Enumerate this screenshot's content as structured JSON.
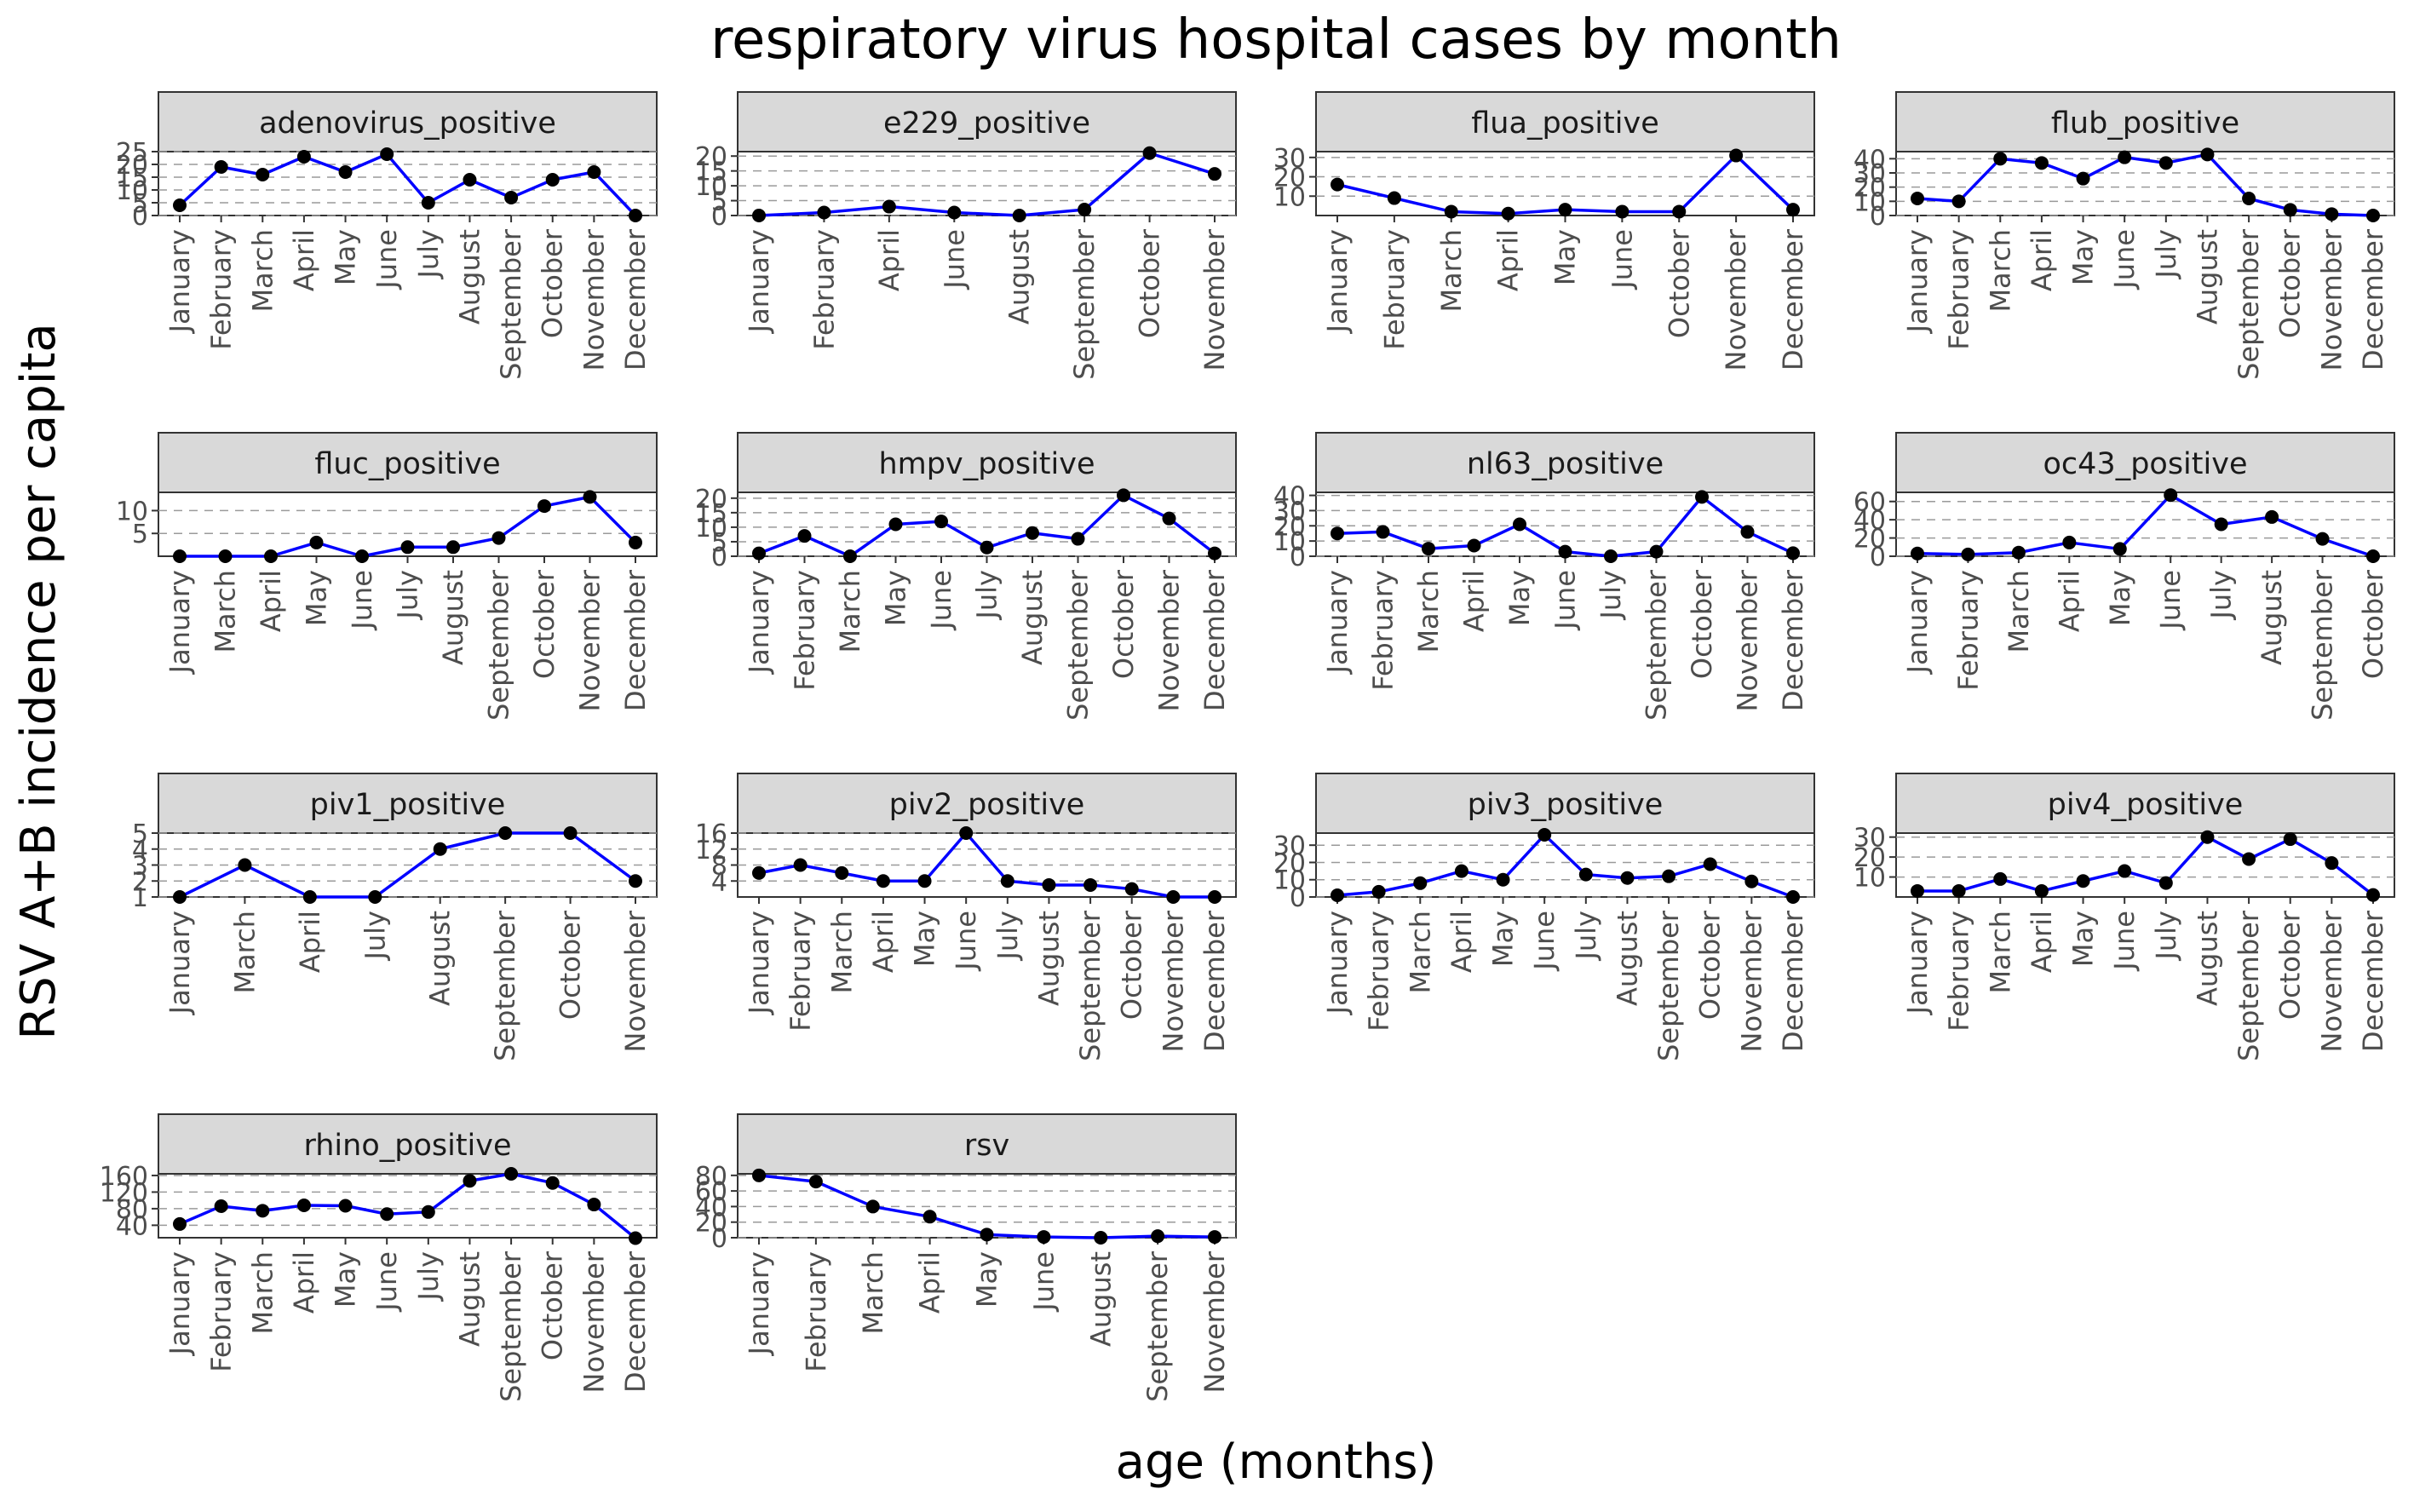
{
  "title": "respiratory virus hospital cases by month",
  "xlabel": "age (months)",
  "ylabel": "RSV A+B incidence per capita",
  "colors": {
    "line": "#0000FF",
    "point": "#000000",
    "strip": "#D9D9D9",
    "grid": "#9A9A9A"
  },
  "chart_data": [
    {
      "type": "line",
      "title": "adenovirus_positive",
      "categories": [
        "January",
        "February",
        "March",
        "April",
        "May",
        "June",
        "July",
        "August",
        "September",
        "October",
        "November",
        "December"
      ],
      "values": [
        4,
        19,
        16,
        23,
        17,
        24,
        5,
        14,
        7,
        14,
        17,
        0
      ],
      "yticks": [
        0,
        5,
        10,
        15,
        20,
        25
      ],
      "ylim": [
        0,
        25
      ]
    },
    {
      "type": "line",
      "title": "e229_positive",
      "categories": [
        "January",
        "February",
        "April",
        "June",
        "August",
        "September",
        "October",
        "November"
      ],
      "values": [
        0,
        1,
        3,
        1,
        0,
        2,
        21,
        14
      ],
      "yticks": [
        0,
        5,
        10,
        15,
        20
      ],
      "ylim": [
        0,
        21.5
      ]
    },
    {
      "type": "line",
      "title": "flua_positive",
      "categories": [
        "January",
        "February",
        "March",
        "April",
        "May",
        "June",
        "October",
        "November",
        "December"
      ],
      "values": [
        16,
        9,
        2,
        1,
        3,
        2,
        2,
        31,
        3
      ],
      "yticks": [
        10,
        20,
        30
      ],
      "ylim": [
        0,
        33
      ]
    },
    {
      "type": "line",
      "title": "flub_positive",
      "categories": [
        "January",
        "February",
        "March",
        "April",
        "May",
        "June",
        "July",
        "August",
        "September",
        "October",
        "November",
        "December"
      ],
      "values": [
        12,
        10,
        40,
        37,
        26,
        41,
        37,
        43,
        12,
        4,
        1,
        0
      ],
      "yticks": [
        0,
        10,
        20,
        30,
        40
      ],
      "ylim": [
        0,
        45
      ]
    },
    {
      "type": "line",
      "title": "fluc_positive",
      "categories": [
        "January",
        "March",
        "April",
        "May",
        "June",
        "July",
        "August",
        "September",
        "October",
        "November",
        "December"
      ],
      "values": [
        0,
        0,
        0,
        3,
        0,
        2,
        2,
        4,
        11,
        13,
        3
      ],
      "yticks": [
        5,
        10
      ],
      "ylim": [
        0,
        14
      ]
    },
    {
      "type": "line",
      "title": "hmpv_positive",
      "categories": [
        "January",
        "February",
        "March",
        "May",
        "June",
        "July",
        "August",
        "September",
        "October",
        "November",
        "December"
      ],
      "values": [
        1,
        7,
        0,
        11,
        12,
        3,
        8,
        6,
        21,
        13,
        1
      ],
      "yticks": [
        0,
        5,
        10,
        15,
        20
      ],
      "ylim": [
        0,
        22
      ]
    },
    {
      "type": "line",
      "title": "nl63_positive",
      "categories": [
        "January",
        "February",
        "March",
        "April",
        "May",
        "June",
        "July",
        "September",
        "October",
        "November",
        "December"
      ],
      "values": [
        15,
        16,
        5,
        7,
        21,
        3,
        0,
        3,
        39,
        16,
        2
      ],
      "yticks": [
        0,
        10,
        20,
        30,
        40
      ],
      "ylim": [
        0,
        42
      ]
    },
    {
      "type": "line",
      "title": "oc43_positive",
      "categories": [
        "January",
        "February",
        "March",
        "April",
        "May",
        "June",
        "July",
        "August",
        "September",
        "October"
      ],
      "values": [
        3,
        2,
        4,
        15,
        8,
        67,
        35,
        43,
        19,
        0
      ],
      "yticks": [
        0,
        20,
        40,
        60
      ],
      "ylim": [
        0,
        70
      ]
    },
    {
      "type": "line",
      "title": "piv1_positive",
      "categories": [
        "January",
        "March",
        "April",
        "July",
        "August",
        "September",
        "October",
        "November"
      ],
      "values": [
        1,
        3,
        1,
        1,
        4,
        5,
        5,
        2
      ],
      "yticks": [
        1,
        2,
        3,
        4,
        5
      ],
      "ylim": [
        1,
        5
      ]
    },
    {
      "type": "line",
      "title": "piv2_positive",
      "categories": [
        "January",
        "February",
        "March",
        "April",
        "May",
        "June",
        "July",
        "August",
        "September",
        "October",
        "November",
        "December"
      ],
      "values": [
        6,
        8,
        6,
        4,
        4,
        16,
        4,
        3,
        3,
        2,
        0,
        0
      ],
      "yticks": [
        4,
        8,
        12,
        16
      ],
      "ylim": [
        0,
        16
      ]
    },
    {
      "type": "line",
      "title": "piv3_positive",
      "categories": [
        "January",
        "February",
        "March",
        "April",
        "May",
        "June",
        "July",
        "August",
        "September",
        "October",
        "November",
        "December"
      ],
      "values": [
        1,
        3,
        8,
        15,
        10,
        36,
        13,
        11,
        12,
        19,
        9,
        0
      ],
      "yticks": [
        0,
        10,
        20,
        30
      ],
      "ylim": [
        0,
        37
      ]
    },
    {
      "type": "line",
      "title": "piv4_positive",
      "categories": [
        "January",
        "February",
        "March",
        "April",
        "May",
        "June",
        "July",
        "August",
        "September",
        "October",
        "November",
        "December"
      ],
      "values": [
        3,
        3,
        9,
        3,
        8,
        13,
        7,
        30,
        19,
        29,
        17,
        1
      ],
      "yticks": [
        10,
        20,
        30
      ],
      "ylim": [
        0,
        32
      ]
    },
    {
      "type": "line",
      "title": "rhino_positive",
      "categories": [
        "January",
        "February",
        "March",
        "April",
        "May",
        "June",
        "July",
        "August",
        "September",
        "October",
        "November",
        "December"
      ],
      "values": [
        43,
        86,
        75,
        88,
        87,
        67,
        72,
        147,
        164,
        142,
        90,
        9
      ],
      "yticks": [
        40,
        80,
        120,
        160
      ],
      "ylim": [
        10,
        164
      ]
    },
    {
      "type": "line",
      "title": "rsv",
      "categories": [
        "January",
        "February",
        "March",
        "April",
        "May",
        "June",
        "August",
        "September",
        "November"
      ],
      "values": [
        80,
        72,
        40,
        27,
        4,
        1,
        0,
        2,
        1
      ],
      "yticks": [
        0,
        20,
        40,
        60,
        80
      ],
      "ylim": [
        0,
        82
      ]
    }
  ]
}
